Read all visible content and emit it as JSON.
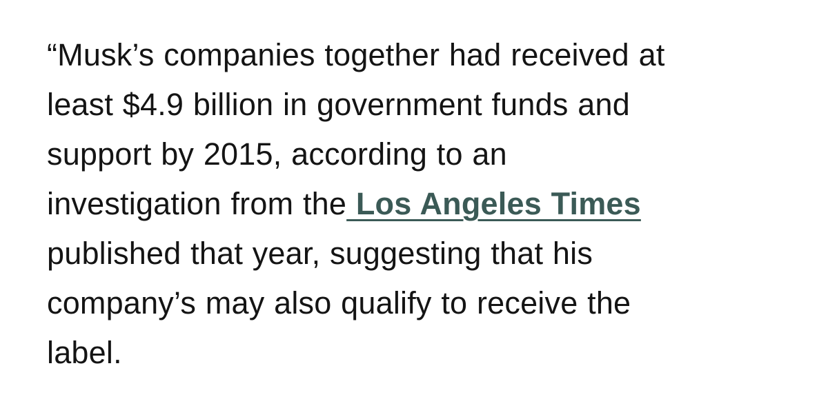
{
  "article": {
    "lines": [
      "“Musk’s companies together had received at",
      "least $4.9 billion in government funds and",
      "support by 2015, according to an",
      "investigation from the",
      "published that year, suggesting that his",
      "company’s may also qualify to receive the",
      "label."
    ],
    "link_text": " Los Angeles Times",
    "link_color": "#3b5a56",
    "text_color": "#141414"
  }
}
